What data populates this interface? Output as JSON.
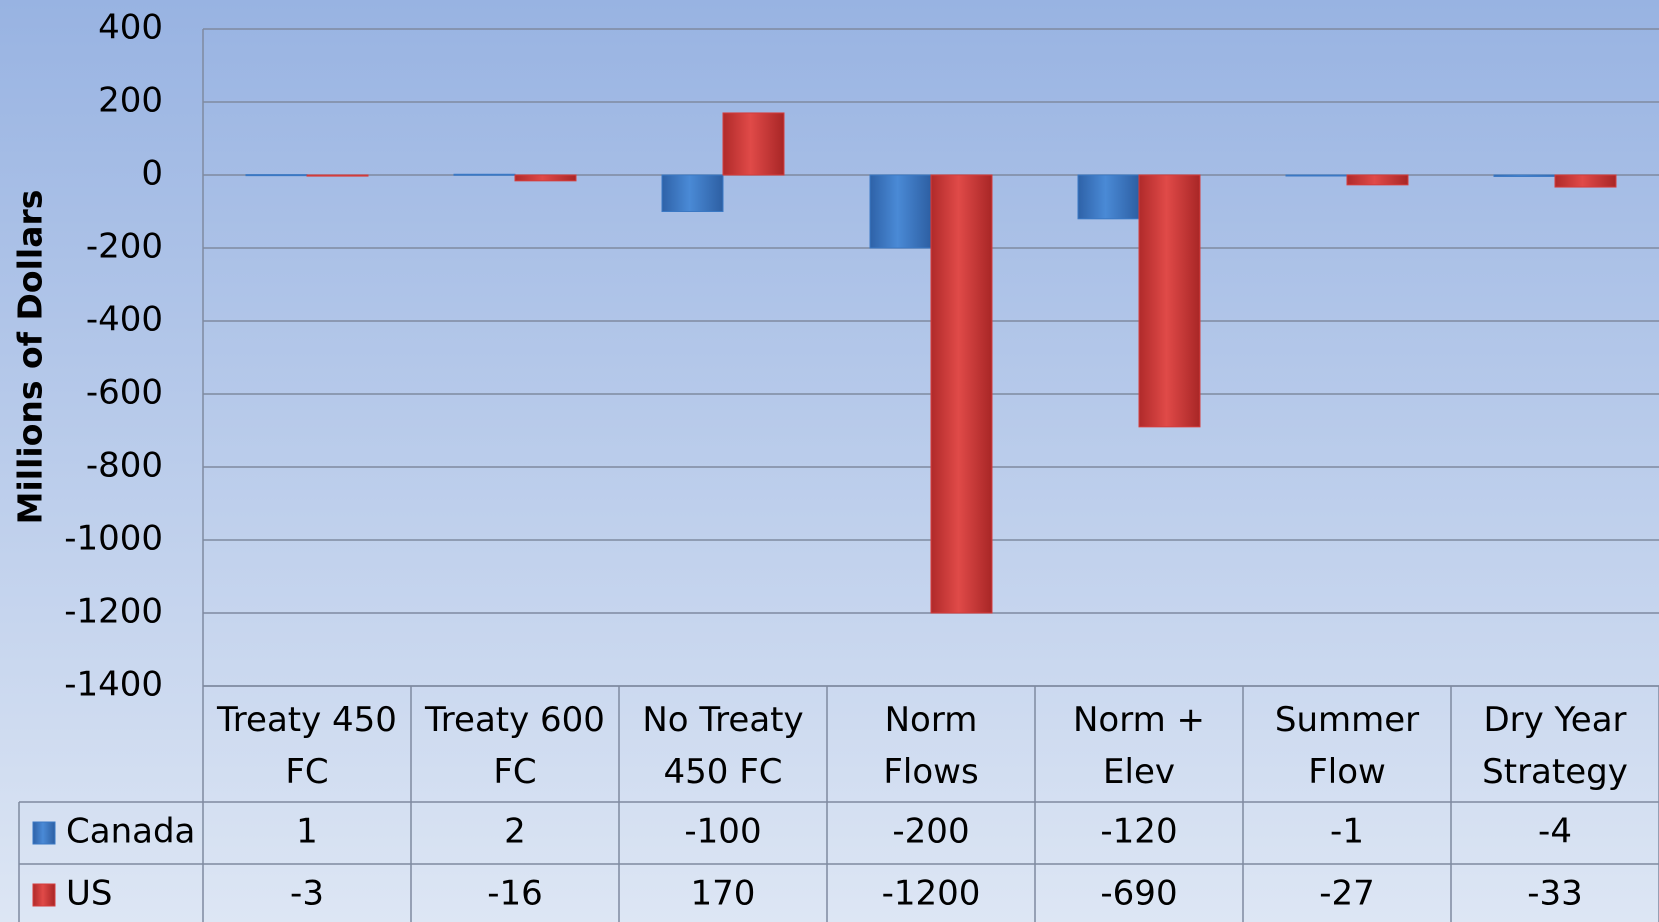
{
  "chart_data": {
    "type": "bar",
    "ylabel": "Millions of Dollars",
    "categories": [
      "Treaty 450 FC",
      "Treaty 600 FC",
      "No Treaty 450 FC",
      "Norm Flows",
      "Norm + Elev",
      "Summer Flow",
      "Dry Year Strategy"
    ],
    "series": [
      {
        "name": "Canada",
        "color": "#3a78c4",
        "values": [
          1,
          2,
          -100,
          -200,
          -120,
          -1,
          -4
        ]
      },
      {
        "name": "US",
        "color": "#d43c3c",
        "values": [
          -3,
          -16,
          170,
          -1200,
          -690,
          -27,
          -33
        ]
      }
    ],
    "ylim": [
      -1400,
      400
    ],
    "yticks": [
      -1400,
      -1200,
      -1000,
      -800,
      -600,
      -400,
      -200,
      0,
      200,
      400
    ],
    "grid": true
  }
}
